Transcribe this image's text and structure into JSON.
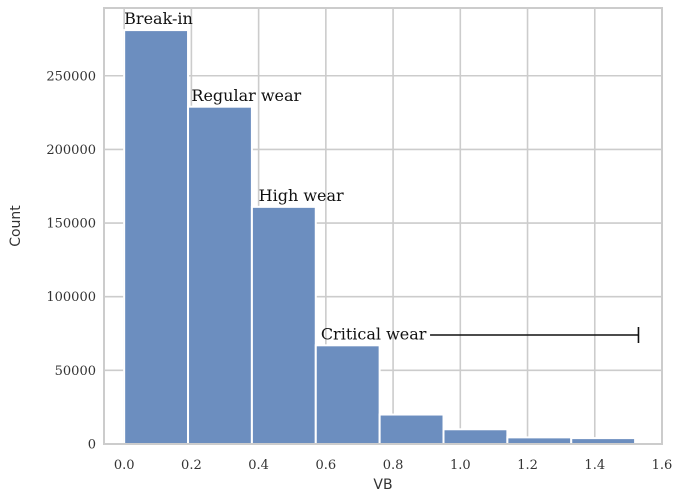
{
  "chart_data": {
    "type": "bar",
    "title": "",
    "xlabel": "VB",
    "ylabel": "Count",
    "xlim": [
      -0.06,
      1.6
    ],
    "ylim": [
      0,
      296000
    ],
    "grid": true,
    "bar_color": "#6c8ebf",
    "bin_edges": [
      0.0,
      0.19,
      0.38,
      0.57,
      0.76,
      0.95,
      1.14,
      1.33,
      1.52
    ],
    "counts": [
      281000,
      229000,
      161000,
      67000,
      20000,
      10000,
      4500,
      4000
    ],
    "xticks": [
      0.0,
      0.2,
      0.4,
      0.6,
      0.8,
      1.0,
      1.2,
      1.4,
      1.6
    ],
    "xtick_labels": [
      "0.0",
      "0.2",
      "0.4",
      "0.6",
      "0.8",
      "1.0",
      "1.2",
      "1.4",
      "1.6"
    ],
    "yticks": [
      0,
      50000,
      100000,
      150000,
      200000,
      250000
    ],
    "ytick_labels": [
      "0",
      "50000",
      "100000",
      "150000",
      "200000",
      "250000"
    ],
    "annotations": [
      {
        "text": "Break-in",
        "x": 0.0,
        "y": 285000
      },
      {
        "text": "Regular wear",
        "x": 0.2,
        "y": 233000
      },
      {
        "text": "High wear",
        "x": 0.4,
        "y": 165000
      },
      {
        "text": "Critical wear",
        "x": 0.585,
        "y": 71000
      }
    ],
    "critical_range": {
      "x_start": 0.91,
      "x_end": 1.53,
      "y": 74000
    }
  }
}
